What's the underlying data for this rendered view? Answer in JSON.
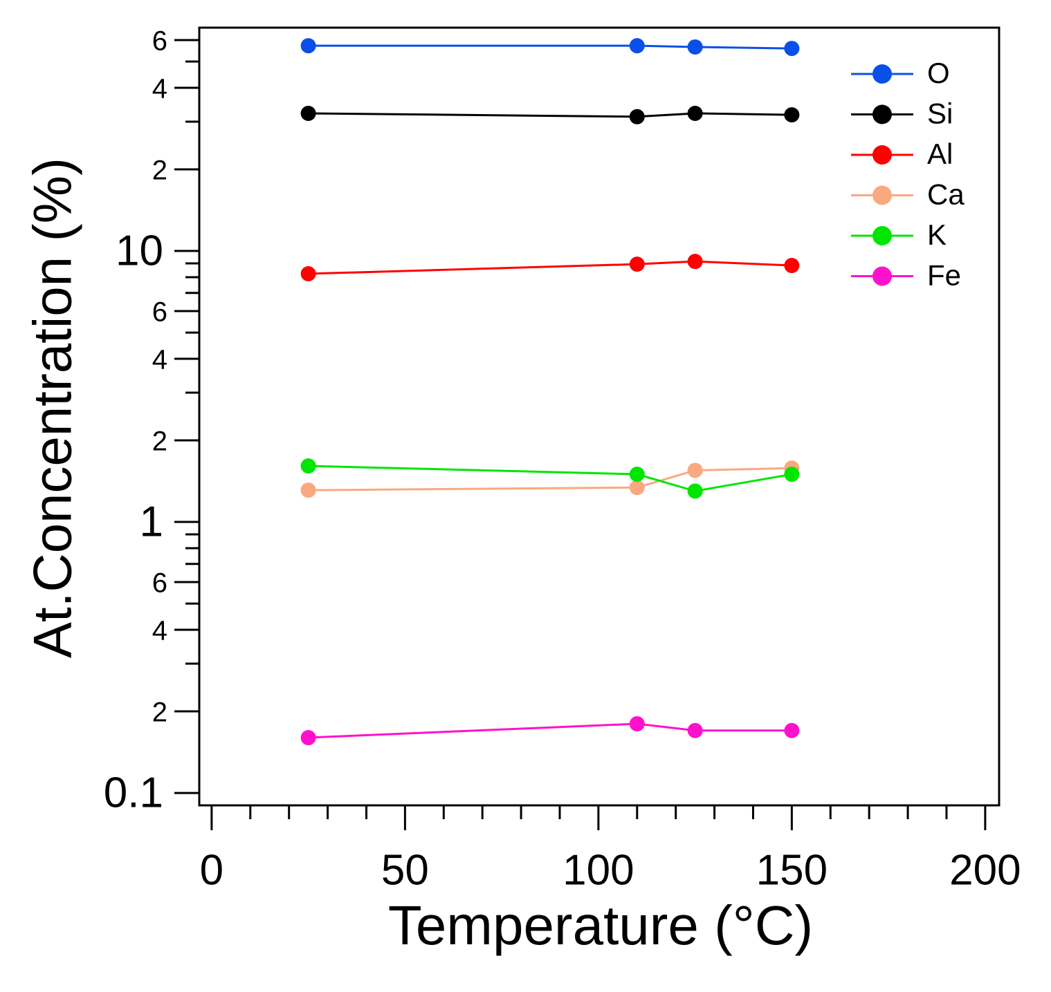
{
  "chart_data": {
    "type": "line",
    "x_label": "Temperature (°C)",
    "y_label": "At.Concentration (%)",
    "x": [
      25,
      110,
      125,
      150
    ],
    "series": [
      {
        "name": "O",
        "color": "#0a50e8",
        "values": [
          57.2,
          57.2,
          56.6,
          55.9
        ]
      },
      {
        "name": "Si",
        "color": "#000000",
        "values": [
          32.2,
          31.3,
          32.2,
          31.8
        ]
      },
      {
        "name": "Al",
        "color": "#ff0000",
        "values": [
          8.24,
          8.94,
          9.15,
          8.84
        ]
      },
      {
        "name": "Ca",
        "color": "#f9a97f",
        "values": [
          1.31,
          1.34,
          1.55,
          1.58
        ]
      },
      {
        "name": "K",
        "color": "#00e600",
        "values": [
          1.61,
          1.5,
          1.3,
          1.5
        ]
      },
      {
        "name": "Fe",
        "color": "#ff10cc",
        "values": [
          0.16,
          0.18,
          0.17,
          0.17
        ]
      }
    ],
    "xlim": [
      -3.2,
      203.6
    ],
    "xticks": [
      0,
      50,
      100,
      150,
      200
    ],
    "xminorticks": [
      10,
      20,
      30,
      40,
      60,
      70,
      80,
      90,
      110,
      120,
      130,
      140,
      160,
      170,
      180,
      190
    ],
    "ylim": [
      0.09,
      66.7
    ],
    "yscale": "log",
    "yticks": [
      0.1,
      {
        "value": 0.2,
        "label": "2"
      },
      {
        "value": 0.4,
        "label": "4"
      },
      {
        "value": 0.6,
        "label": "6"
      },
      1,
      {
        "value": 2,
        "label": "2"
      },
      {
        "value": 4,
        "label": "4"
      },
      {
        "value": 6,
        "label": "6"
      },
      10,
      {
        "value": 20,
        "label": "2"
      },
      {
        "value": 40,
        "label": "4"
      },
      {
        "value": 60,
        "label": "6"
      }
    ],
    "yminorticks": [
      0.3,
      0.5,
      0.7,
      0.8,
      0.9,
      3,
      5,
      7,
      8,
      9,
      30,
      50
    ],
    "legend": "upper right",
    "grid": false
  }
}
